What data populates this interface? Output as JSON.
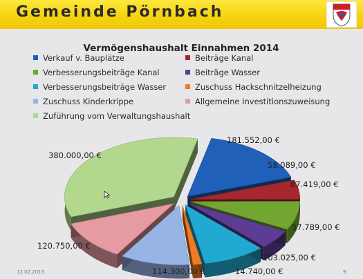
{
  "header": {
    "title": "Gemeinde Pörnbach"
  },
  "footer": {
    "date": "12.02.2015",
    "page": "9"
  },
  "chart_data": {
    "type": "pie",
    "title": "Vermögenshaushalt Einnahmen  2014",
    "unit": "€",
    "legend_position": "top",
    "slices": [
      {
        "name": "Verkauf v. Bauplätze",
        "value": 181552.0,
        "label": "181.552,00 €",
        "color": "#2160b8"
      },
      {
        "name": "Beiträge Kanal",
        "value": 58089.0,
        "label": "58.089,00 €",
        "color": "#a6272d"
      },
      {
        "name": "Verbesserungsbeiträge Kanal",
        "value": 87419.0,
        "label": "87.419,00 €",
        "color": "#72a531"
      },
      {
        "name": "Beiträge Wasser",
        "value": 57789.0,
        "label": "57.789,00 €",
        "color": "#5c3c94"
      },
      {
        "name": "Verbesserungsbeiträge Wasser",
        "value": 103025.0,
        "label": "103.025,00 €",
        "color": "#22a9d1"
      },
      {
        "name": "Zuschuss Hackschnitzelheizung",
        "value": 14740.0,
        "label": "14.740,00 €",
        "color": "#ef7b24"
      },
      {
        "name": "Zuschuss Kinderkrippe",
        "value": 114300.0,
        "label": "114.300,00 €",
        "color": "#97b4e6"
      },
      {
        "name": "Allgemeine Investitionszuweisung",
        "value": 120750.0,
        "label": "120.750,00 €",
        "color": "#e69aa1"
      },
      {
        "name": "Zuführung vom Verwaltungshaushalt",
        "value": 380000.0,
        "label": "380.000,00 €",
        "color": "#b2d88d"
      }
    ]
  }
}
